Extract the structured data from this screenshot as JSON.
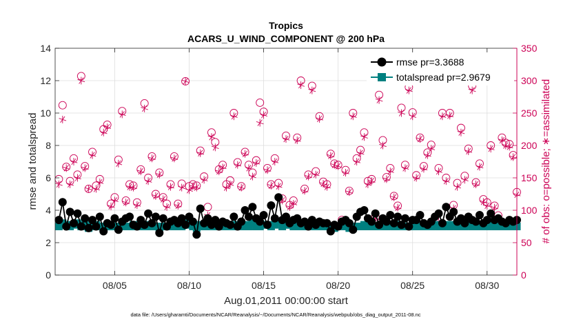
{
  "chart_data": {
    "type": "line",
    "title": "Tropics",
    "subtitle": "ACARS_U_WIND_COMPONENT @ 200 hPa",
    "xlabel": "Aug.01,2011 00:00:00 start",
    "ylabel_left": "rmse and totalspread",
    "ylabel_right": "# of obs: o=possible; ∗=assimilated",
    "footnote": "data file: /Users/gharamti/Documents/NCAR/Reanalysis/~/Documents/NCAR/Reanalysis/webpub/obs_diag_output_2011-08.nc",
    "xlim": [
      1.0,
      32.0
    ],
    "ylim_left": [
      0,
      14
    ],
    "ylim_right": [
      0,
      350
    ],
    "x_ticks": [
      5,
      10,
      15,
      20,
      25,
      30
    ],
    "x_tick_labels": [
      "08/05",
      "08/10",
      "08/15",
      "08/20",
      "08/25",
      "08/30"
    ],
    "y_left_ticks": [
      0,
      2,
      4,
      6,
      8,
      10,
      12,
      14
    ],
    "y_left_tick_labels": [
      "0",
      "2",
      "4",
      "6",
      "8",
      "10",
      "12",
      "14"
    ],
    "y_right_ticks": [
      0,
      50,
      100,
      150,
      200,
      250,
      300,
      350
    ],
    "y_right_tick_labels": [
      "0",
      "50",
      "100",
      "150",
      "200",
      "250",
      "300",
      "350"
    ],
    "colors": {
      "rmse": "#000000",
      "spread": "#008080",
      "obs": "#cc0055",
      "axis": "#262626"
    },
    "legend": [
      {
        "label": "rmse pr=3.3688"
      },
      {
        "label": "totalspread pr=2.9679"
      }
    ],
    "legend_position": "top-right",
    "series": [
      {
        "name": "rmse",
        "axis": "left",
        "values": [
          3.4,
          4.5,
          3.0,
          3.9,
          3.2,
          3.8,
          3.0,
          3.5,
          2.9,
          3.4,
          3.0,
          3.6,
          2.7,
          3.2,
          3.1,
          3.5,
          2.8,
          3.3,
          3.5,
          3.6,
          3.1,
          3.0,
          3.4,
          3.1,
          3.8,
          3.2,
          3.6,
          2.6,
          3.5,
          3.0,
          3.3,
          3.4,
          3.2,
          3.5,
          3.1,
          3.6,
          3.3,
          2.5,
          4.1,
          3.2,
          3.5,
          3.1,
          3.4,
          3.0,
          3.3,
          3.2,
          3.1,
          3.6,
          3.0,
          3.3,
          4.0,
          3.6,
          4.2,
          3.5,
          3.3,
          3.7,
          3.1,
          4.3,
          3.5,
          4.8,
          3.4,
          3.6,
          3.2,
          3.4,
          3.5,
          3.2,
          3.3,
          3.0,
          3.4,
          3.1,
          3.3,
          3.2,
          3.2,
          2.7,
          3.1,
          3.0,
          3.3,
          3.4,
          3.2,
          2.8,
          3.6,
          3.9,
          4.0,
          3.5,
          3.3,
          3.8,
          3.1,
          3.5,
          3.3,
          3.7,
          3.2,
          3.6,
          3.1,
          3.5,
          3.0,
          3.4,
          3.4,
          3.7,
          3.2,
          3.1,
          3.3,
          3.6,
          3.8,
          3.2,
          4.2,
          3.6,
          3.9,
          3.3,
          3.5,
          3.2,
          3.6,
          3.4,
          3.3,
          3.7,
          3.2,
          3.4,
          3.8,
          3.4,
          3.5,
          3.3,
          3.2,
          3.4,
          3.3,
          3.4
        ]
      },
      {
        "name": "totalspread",
        "axis": "left",
        "values": [
          3.0,
          3.2,
          3.1,
          3.0,
          3.1,
          3.2,
          3.0,
          3.1,
          2.9,
          3.0,
          3.1,
          3.0,
          2.9,
          3.0,
          3.1,
          3.0,
          3.0,
          3.1,
          3.0,
          3.0,
          3.1,
          3.0,
          3.0,
          3.0,
          3.1,
          3.0,
          3.0,
          2.9,
          3.0,
          3.0,
          3.1,
          3.0,
          3.0,
          3.0,
          3.1,
          3.2,
          3.0,
          2.9,
          3.1,
          3.0,
          3.0,
          3.0,
          3.1,
          3.0,
          3.0,
          3.1,
          3.0,
          3.1,
          3.0,
          3.0,
          3.1,
          3.0,
          3.2,
          3.0,
          3.0,
          3.1,
          3.1,
          3.0,
          3.1,
          3.3,
          3.0,
          3.1,
          3.1,
          3.0,
          3.0,
          3.1,
          3.0,
          3.0,
          3.1,
          3.0,
          3.0,
          3.0,
          3.0,
          2.9,
          2.9,
          3.0,
          3.0,
          3.0,
          2.9,
          2.9,
          3.0,
          3.0,
          3.1,
          3.0,
          3.0,
          3.0,
          3.0,
          3.1,
          3.0,
          3.1,
          3.0,
          3.1,
          3.0,
          3.0,
          3.0,
          3.1,
          3.0,
          3.0,
          3.1,
          3.0,
          3.0,
          3.1,
          3.0,
          3.0,
          3.1,
          3.0,
          3.1,
          3.0,
          3.0,
          3.0,
          3.1,
          3.0,
          3.0,
          3.1,
          3.0,
          3.0,
          3.1,
          3.0,
          3.0,
          3.0,
          3.0,
          3.0,
          3.0,
          3.0
        ]
      },
      {
        "name": "possible",
        "axis": "right",
        "values": [
          148,
          262,
          167,
          145,
          180,
          155,
          307,
          168,
          133,
          190,
          138,
          148,
          225,
          232,
          110,
          120,
          178,
          253,
          115,
          140,
          138,
          112,
          163,
          265,
          150,
          183,
          125,
          158,
          120,
          110,
          140,
          183,
          110,
          141,
          299,
          137,
          140,
          138,
          192,
          152,
          105,
          220,
          205,
          163,
          170,
          140,
          146,
          250,
          174,
          137,
          190,
          170,
          158,
          177,
          266,
          252,
          165,
          140,
          180,
          142,
          118,
          215,
          108,
          115,
          212,
          300,
          133,
          155,
          292,
          160,
          245,
          144,
          140,
          187,
          172,
          170,
          85,
          162,
          130,
          250,
          180,
          193,
          220,
          145,
          148,
          90,
          278,
          208,
          151,
          165,
          122,
          107,
          258,
          170,
          290,
          251,
          154,
          212,
          168,
          189,
          201,
          87,
          165,
          250,
          150,
          250,
          108,
          142,
          227,
          153,
          195,
          292,
          143,
          172,
          117,
          112,
          200,
          107,
          92,
          212,
          204,
          202,
          185,
          128
        ]
      },
      {
        "name": "assimilated",
        "axis": "right",
        "values": [
          140,
          240,
          165,
          140,
          175,
          150,
          300,
          165,
          133,
          185,
          133,
          143,
          220,
          228,
          106,
          115,
          172,
          248,
          112,
          136,
          135,
          108,
          160,
          257,
          145,
          180,
          122,
          155,
          117,
          105,
          136,
          180,
          107,
          135,
          299,
          131,
          137,
          135,
          188,
          147,
          92,
          213,
          197,
          160,
          166,
          135,
          140,
          245,
          170,
          135,
          187,
          165,
          152,
          173,
          235,
          247,
          162,
          138,
          175,
          137,
          115,
          210,
          105,
          110,
          208,
          293,
          130,
          152,
          285,
          155,
          241,
          141,
          136,
          184,
          170,
          168,
          82,
          158,
          128,
          245,
          175,
          188,
          213,
          140,
          145,
          87,
          270,
          200,
          148,
          160,
          120,
          104,
          250,
          165,
          285,
          245,
          150,
          210,
          164,
          185,
          195,
          82,
          160,
          245,
          145,
          246,
          103,
          136,
          220,
          147,
          191,
          285,
          140,
          167,
          113,
          107,
          195,
          104,
          88,
          208,
          200,
          198,
          182,
          124
        ]
      }
    ]
  }
}
